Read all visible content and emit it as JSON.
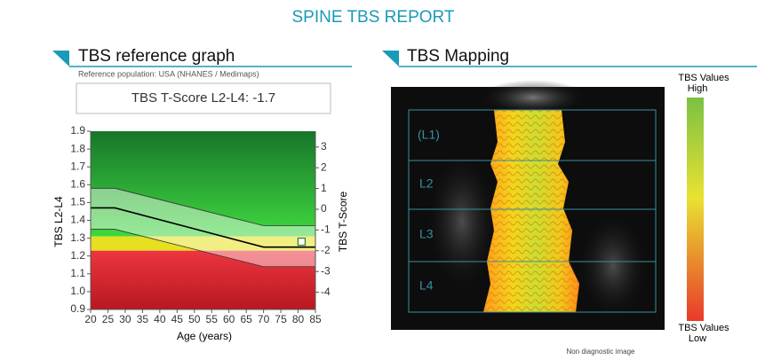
{
  "report": {
    "title": "SPINE TBS  REPORT",
    "left_header": "TBS reference graph",
    "reference_population": "Reference population: USA (NHANES / Medimaps)",
    "tscore_box": "TBS T-Score L2-L4: -1.7",
    "right_header": "TBS Mapping",
    "scale_top": [
      "TBS Values",
      "High"
    ],
    "scale_bottom": [
      "TBS Values",
      "Low"
    ],
    "vertebrae": [
      "(L1)",
      "L2",
      "L3",
      "L4"
    ],
    "footnote": "Non diagnostic image"
  },
  "chart_data": {
    "type": "line",
    "xlabel": "Age (years)",
    "ylabel": "TBS L2-L4",
    "y2label": "TBS T-Score",
    "x": [
      20,
      27,
      70,
      85
    ],
    "series": [
      {
        "color": "#333333",
        "values": [
          1.58,
          1.58,
          1.37,
          1.37
        ]
      },
      {
        "color": "#000000",
        "values": [
          1.47,
          1.47,
          1.25,
          1.25
        ]
      },
      {
        "color": "#333333",
        "values": [
          1.35,
          1.35,
          1.14,
          1.14
        ]
      }
    ],
    "zones": [
      {
        "range": [
          1.31,
          1.9
        ],
        "color": "#2aa83a"
      },
      {
        "range": [
          1.23,
          1.31
        ],
        "color": "#e6e020"
      },
      {
        "range": [
          0.9,
          1.23
        ],
        "color": "#d82a32"
      }
    ],
    "patient": {
      "x": 81,
      "y": 1.28
    },
    "xlim": [
      20,
      85
    ],
    "xticks": [
      20,
      25,
      30,
      35,
      40,
      45,
      50,
      55,
      60,
      65,
      70,
      75,
      80,
      85
    ],
    "ylim": [
      0.9,
      1.9
    ],
    "yticks": [
      0.9,
      {
        "value": 1,
        "label": "1.0"
      },
      1.1,
      1.2,
      1.3,
      1.4,
      1.5,
      1.6,
      1.7,
      1.8,
      1.9
    ],
    "y2lim": [
      -4.83,
      3.76
    ],
    "y2ticks": [
      -4,
      -3,
      -2,
      -1,
      0,
      1,
      2,
      3
    ]
  }
}
